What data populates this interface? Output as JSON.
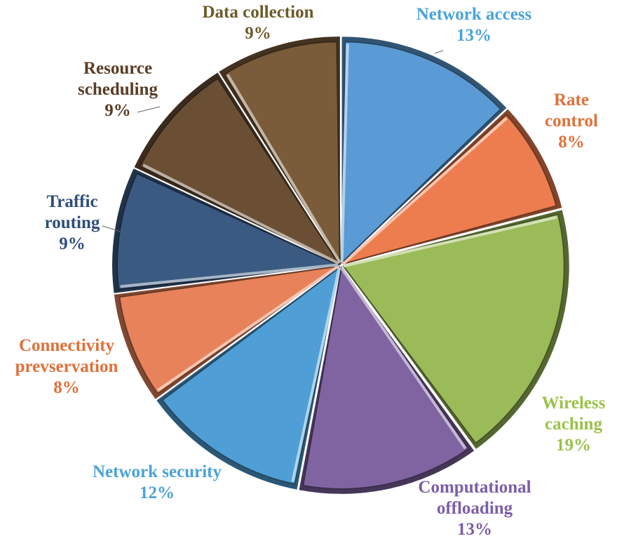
{
  "chart_data": {
    "type": "pie",
    "title": "",
    "unit": "%",
    "slices": [
      {
        "label_lines": [
          "Network access"
        ],
        "value": 13,
        "value_text": "13%",
        "color": "#5b9bd5"
      },
      {
        "label_lines": [
          "Rate",
          "control"
        ],
        "value": 8,
        "value_text": "8%",
        "color": "#ed7d4f"
      },
      {
        "label_lines": [
          "Wireless",
          "caching"
        ],
        "value": 19,
        "value_text": "19%",
        "color": "#9bbb59"
      },
      {
        "label_lines": [
          "Computational",
          "offloading"
        ],
        "value": 13,
        "value_text": "13%",
        "color": "#8064a2"
      },
      {
        "label_lines": [
          "Network security"
        ],
        "value": 12,
        "value_text": "12%",
        "color": "#4f9fd6"
      },
      {
        "label_lines": [
          "Connectivity",
          "prevservation"
        ],
        "value": 8,
        "value_text": "8%",
        "color": "#e8825a"
      },
      {
        "label_lines": [
          "Traffic",
          "routing"
        ],
        "value": 9,
        "value_text": "9%",
        "color": "#3b5a82"
      },
      {
        "label_lines": [
          "Resource",
          "scheduling"
        ],
        "value": 9,
        "value_text": "9%",
        "color": "#6b4f35"
      },
      {
        "label_lines": [
          "Data collection"
        ],
        "value": 9,
        "value_text": "9%",
        "color": "#7a5c3a"
      }
    ],
    "legend": "none"
  }
}
